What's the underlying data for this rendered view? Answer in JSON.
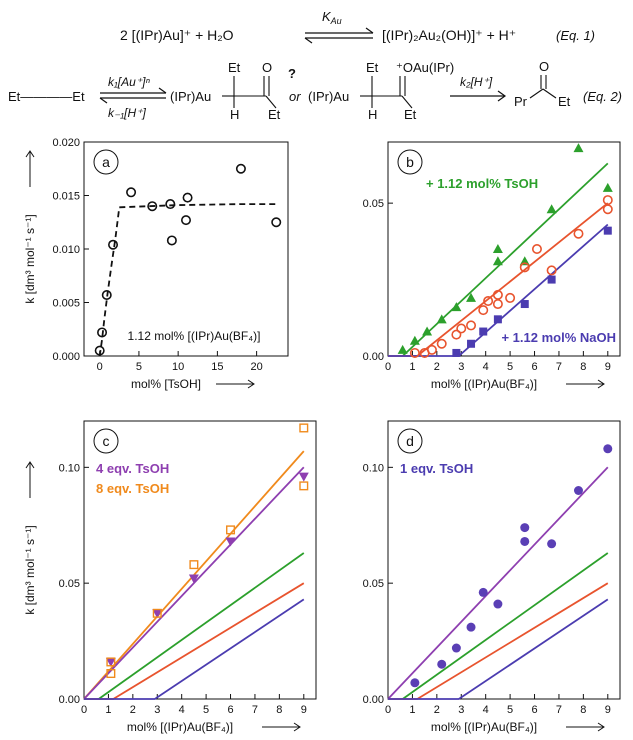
{
  "equations": {
    "eq1": {
      "left": "2 [(IPr)Au]⁺  +  H₂O",
      "k_label": "K",
      "k_sub": "Au",
      "right": "[(IPr)₂Au₂(OH)]⁺  +  H⁺",
      "tag": "(Eq. 1)"
    },
    "eq2": {
      "reactant": "Et————Et",
      "k1": "k₁[Au⁺]ⁿ",
      "km1": "k₋₁[H⁺]",
      "int1": "(IPr)Au",
      "int1_et": "Et",
      "int1_h": "H",
      "int1_o": "O",
      "int1_et2": "Et",
      "question": "?",
      "or": "or",
      "int2": "(IPr)Au",
      "int2_o": "⁺OAu(IPr)",
      "int2_et": "Et",
      "int2_h": "H",
      "int2_et2": "Et",
      "k2": "k₂[H⁺]",
      "product_pr": "Pr",
      "product_o": "O",
      "product_et": "Et",
      "tag": "(Eq. 2)"
    }
  },
  "y_axis_label": "k [dm³ mol⁻¹ s⁻¹]",
  "colors": {
    "green": "#2ca02c",
    "red": "#e8542e",
    "blue": "#4b3cb0",
    "purple": "#8e3fb0",
    "orange": "#f08a1c",
    "black": "#111111"
  },
  "chart_data": [
    {
      "panel": "a",
      "type": "scatter",
      "xlabel": "mol% [TsOH]",
      "ylabel": "k [dm³ mol⁻¹ s⁻¹]",
      "xlim": [
        -2,
        24
      ],
      "ylim": [
        0,
        0.02
      ],
      "xticks": [
        0,
        5,
        10,
        15,
        20
      ],
      "yticks": [
        0.0,
        0.005,
        0.01,
        0.015,
        0.02
      ],
      "ytick_labels": [
        "0.000",
        "0.005",
        "0.010",
        "0.015",
        "0.020"
      ],
      "annotation": "1.12 mol% [(IPr)Au(BF₄)]",
      "series": [
        {
          "marker": "open-circle",
          "color": "#111111",
          "x": [
            0.0,
            0.3,
            0.9,
            1.7,
            4.0,
            6.7,
            9.0,
            9.2,
            11.0,
            11.2,
            18.0,
            22.5
          ],
          "y": [
            0.0005,
            0.0022,
            0.0057,
            0.0104,
            0.0153,
            0.014,
            0.0142,
            0.0108,
            0.0127,
            0.0148,
            0.0175,
            0.0125
          ]
        }
      ],
      "fit": {
        "style": "dashed",
        "color": "#111111",
        "x": [
          0.0,
          0.3,
          0.6,
          1.0,
          1.5,
          2.0,
          2.5,
          10.0,
          18.0,
          22.5
        ],
        "y": [
          0.0,
          0.0015,
          0.0035,
          0.0058,
          0.0085,
          0.011,
          0.0139,
          0.0141,
          0.0142,
          0.0142
        ]
      }
    },
    {
      "panel": "b",
      "type": "scatter",
      "xlabel": "mol% [(IPr)Au(BF₄)]",
      "xlim": [
        0,
        9.5
      ],
      "ylim": [
        0,
        0.07
      ],
      "xticks": [
        0,
        1,
        2,
        3,
        4,
        5,
        6,
        7,
        8,
        9
      ],
      "yticks": [
        0.0,
        0.05
      ],
      "ytick_labels": [
        "0.00",
        "0.05"
      ],
      "annotations": [
        {
          "text": "+ 1.12 mol% TsOH",
          "color": "#2ca02c",
          "pos": "upper-left"
        },
        {
          "text": "+ 1.12 mol% NaOH",
          "color": "#4b3cb0",
          "pos": "lower-right"
        }
      ],
      "series": [
        {
          "name": "+ 1.12 mol% TsOH",
          "marker": "filled-triangle",
          "color": "#2ca02c",
          "x": [
            0.6,
            1.1,
            1.6,
            2.2,
            2.8,
            3.4,
            4.5,
            4.5,
            5.6,
            6.7,
            7.8,
            9.0
          ],
          "y": [
            0.002,
            0.005,
            0.008,
            0.012,
            0.016,
            0.019,
            0.031,
            0.035,
            0.031,
            0.048,
            0.068,
            0.055
          ]
        },
        {
          "name": "red",
          "marker": "open-circle",
          "color": "#e8542e",
          "x": [
            1.1,
            1.5,
            1.8,
            2.2,
            2.8,
            3.0,
            3.4,
            3.9,
            4.1,
            4.5,
            4.5,
            5.0,
            5.6,
            6.1,
            6.7,
            7.8,
            9.0,
            9.0
          ],
          "y": [
            0.001,
            0.001,
            0.002,
            0.004,
            0.007,
            0.009,
            0.01,
            0.015,
            0.018,
            0.017,
            0.02,
            0.019,
            0.029,
            0.035,
            0.028,
            0.04,
            0.048,
            0.051
          ]
        },
        {
          "name": "+ 1.12 mol% NaOH",
          "marker": "filled-square",
          "color": "#4b3cb0",
          "x": [
            2.8,
            3.4,
            3.9,
            4.5,
            5.6,
            6.7,
            9.0
          ],
          "y": [
            0.001,
            0.004,
            0.008,
            0.012,
            0.017,
            0.025,
            0.041
          ]
        }
      ],
      "fits": [
        {
          "color": "#2ca02c",
          "x": [
            0.6,
            9.0
          ],
          "y": [
            0.0,
            0.063
          ]
        },
        {
          "color": "#e8542e",
          "x": [
            0,
            1.2,
            9.0
          ],
          "y": [
            0.0,
            0.0,
            0.05
          ]
        },
        {
          "color": "#4b3cb0",
          "x": [
            0,
            2.9,
            9.0
          ],
          "y": [
            0.0,
            0.0,
            0.043
          ]
        }
      ]
    },
    {
      "panel": "c",
      "type": "scatter",
      "xlabel": "mol% [(IPr)Au(BF₄)]",
      "ylabel": "k [dm³ mol⁻¹ s⁻¹]",
      "xlim": [
        0,
        9.5
      ],
      "ylim": [
        0,
        0.12
      ],
      "xticks": [
        0,
        1,
        2,
        3,
        4,
        5,
        6,
        7,
        8,
        9
      ],
      "yticks": [
        0.0,
        0.05,
        0.1
      ],
      "ytick_labels": [
        "0.00",
        "0.05",
        "0.10"
      ],
      "annotations": [
        {
          "text": "4 eqv. TsOH",
          "color": "#8e3fb0"
        },
        {
          "text": "8 eqv. TsOH",
          "color": "#f08a1c"
        }
      ],
      "series": [
        {
          "name": "4 eqv. TsOH",
          "marker": "filled-triangle-down",
          "color": "#8e3fb0",
          "x": [
            1.1,
            3.0,
            4.5,
            6.0,
            9.0
          ],
          "y": [
            0.016,
            0.037,
            0.052,
            0.068,
            0.096
          ]
        },
        {
          "name": "8 eqv. TsOH",
          "marker": "open-square",
          "color": "#f08a1c",
          "x": [
            1.1,
            1.1,
            3.0,
            4.5,
            6.0,
            9.0,
            9.0
          ],
          "y": [
            0.011,
            0.016,
            0.037,
            0.058,
            0.073,
            0.117,
            0.092
          ]
        }
      ],
      "fits": [
        {
          "color": "#f08a1c",
          "x": [
            0,
            9.0
          ],
          "y": [
            0.0,
            0.107
          ]
        },
        {
          "color": "#8e3fb0",
          "x": [
            0,
            9.0
          ],
          "y": [
            0.0,
            0.1
          ]
        },
        {
          "color": "#2ca02c",
          "x": [
            0.6,
            9.0
          ],
          "y": [
            0.0,
            0.063
          ]
        },
        {
          "color": "#e8542e",
          "x": [
            0,
            1.2,
            9.0
          ],
          "y": [
            0.0,
            0.0,
            0.05
          ]
        },
        {
          "color": "#4b3cb0",
          "x": [
            0,
            2.9,
            9.0
          ],
          "y": [
            0.0,
            0.0,
            0.043
          ]
        }
      ]
    },
    {
      "panel": "d",
      "type": "scatter",
      "xlabel": "mol% [(IPr)Au(BF₄)]",
      "xlim": [
        0,
        9.5
      ],
      "ylim": [
        0,
        0.12
      ],
      "xticks": [
        0,
        1,
        2,
        3,
        4,
        5,
        6,
        7,
        8,
        9
      ],
      "yticks": [
        0.0,
        0.05,
        0.1
      ],
      "ytick_labels": [
        "0.00",
        "0.05",
        "0.10"
      ],
      "annotations": [
        {
          "text": "1 eqv. TsOH",
          "color": "#4b3cb0"
        }
      ],
      "series": [
        {
          "name": "1 eqv. TsOH",
          "marker": "filled-circle",
          "color": "#5a3fb5",
          "x": [
            1.1,
            2.2,
            2.8,
            3.4,
            3.9,
            4.5,
            5.6,
            5.6,
            6.7,
            7.8,
            9.0
          ],
          "y": [
            0.007,
            0.015,
            0.022,
            0.031,
            0.046,
            0.041,
            0.068,
            0.074,
            0.067,
            0.09,
            0.108
          ]
        }
      ],
      "fits": [
        {
          "color": "#8e3fb0",
          "x": [
            0,
            9.0
          ],
          "y": [
            0.0,
            0.1
          ]
        },
        {
          "color": "#2ca02c",
          "x": [
            0.6,
            9.0
          ],
          "y": [
            0.0,
            0.063
          ]
        },
        {
          "color": "#e8542e",
          "x": [
            0,
            1.2,
            9.0
          ],
          "y": [
            0.0,
            0.0,
            0.05
          ]
        },
        {
          "color": "#4b3cb0",
          "x": [
            0,
            2.9,
            9.0
          ],
          "y": [
            0.0,
            0.0,
            0.043
          ]
        }
      ]
    }
  ]
}
